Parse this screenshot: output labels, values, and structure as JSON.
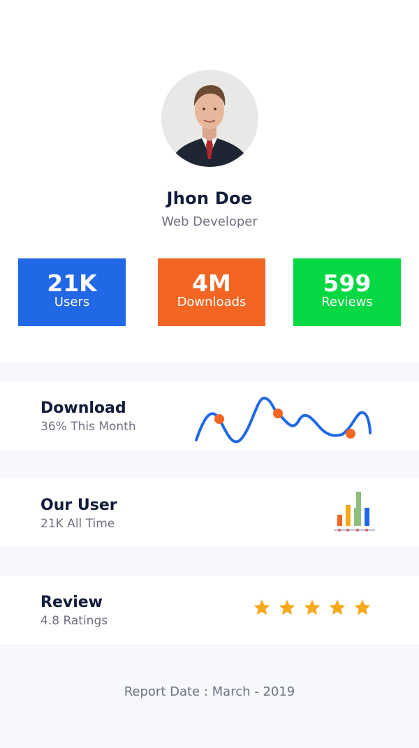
{
  "profile": {
    "name": "Jhon Doe",
    "role": "Web Developer"
  },
  "stats": [
    {
      "value": "21K",
      "label": "Users",
      "color": "#2168e6"
    },
    {
      "value": "4M",
      "label": "Downloads",
      "color": "#f26522"
    },
    {
      "value": "599",
      "label": "Reviews",
      "color": "#06d843"
    }
  ],
  "cards": [
    {
      "title": "Download",
      "subtitle": "36% This Month",
      "icon": "line-wave-chart-icon"
    },
    {
      "title": "Our User",
      "subtitle": "21K All Time",
      "icon": "bar-chart-icon"
    },
    {
      "title": "Review",
      "subtitle": "4.8 Ratings",
      "icon": "star-rating-icon",
      "stars": 5
    }
  ],
  "report": {
    "text": "Report Date : March - 2019"
  },
  "colors": {
    "blue": "#2168e6",
    "orange": "#f26522",
    "green": "#06d843",
    "star": "#f7a81b",
    "title": "#111b3a",
    "muted": "#6e7080"
  }
}
